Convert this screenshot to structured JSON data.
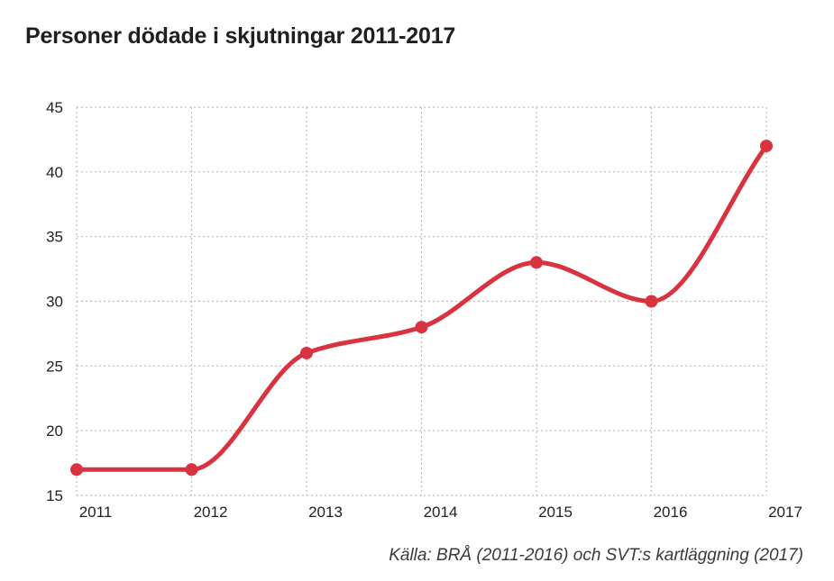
{
  "title": "Personer dödade i skjutningar 2011-2017",
  "source": "Källa: BRÅ (2011-2016) och SVT:s kartläggning (2017)",
  "colors": {
    "line": "#d8333f",
    "grid": "#bdbdbd",
    "text": "#222222"
  },
  "chart_data": {
    "type": "line",
    "title": "Personer dödade i skjutningar 2011-2017",
    "xlabel": "",
    "ylabel": "",
    "categories": [
      "2011",
      "2012",
      "2013",
      "2014",
      "2015",
      "2016",
      "2017"
    ],
    "series": [
      {
        "values": [
          17,
          17,
          26,
          28,
          33,
          30,
          42
        ]
      }
    ],
    "ylim": [
      15,
      45
    ],
    "yticks": [
      15,
      20,
      25,
      30,
      35,
      40,
      45
    ],
    "grid": true,
    "gridstyle": "dotted",
    "smooth": true,
    "markers": true,
    "legend": "none"
  }
}
